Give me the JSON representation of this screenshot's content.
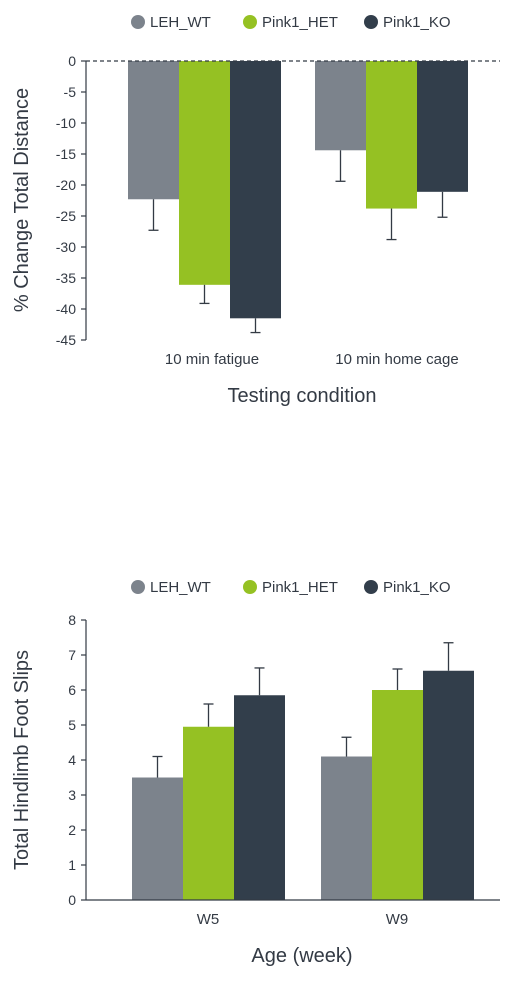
{
  "colors": {
    "LEH_WT": "#7c838c",
    "Pink1_HET": "#95c123",
    "Pink1_KO": "#323e4b",
    "axis": "#333a44"
  },
  "chart_data": [
    {
      "type": "bar",
      "legend": [
        "LEH_WT",
        "Pink1_HET",
        "Pink1_KO"
      ],
      "legend_position": "top",
      "categories": [
        "10 min fatigue",
        "10 min home cage"
      ],
      "series": [
        {
          "name": "LEH_WT",
          "values": [
            -22.3,
            -14.4
          ],
          "errors": [
            5.0,
            5.0
          ]
        },
        {
          "name": "Pink1_HET",
          "values": [
            -36.1,
            -23.8
          ],
          "errors": [
            3.0,
            5.0
          ]
        },
        {
          "name": "Pink1_KO",
          "values": [
            -41.5,
            -21.1
          ],
          "errors": [
            2.3,
            4.1
          ]
        }
      ],
      "xlabel": "Testing condition",
      "ylabel": "% Change Total Distance",
      "ylim": [
        -45,
        0
      ],
      "yticks": [
        0,
        -5,
        -10,
        -15,
        -20,
        -25,
        -30,
        -35,
        -40,
        -45
      ],
      "grid": false,
      "zero_line": "dashed"
    },
    {
      "type": "bar",
      "legend": [
        "LEH_WT",
        "Pink1_HET",
        "Pink1_KO"
      ],
      "legend_position": "top",
      "categories": [
        "W5",
        "W9"
      ],
      "series": [
        {
          "name": "LEH_WT",
          "values": [
            3.5,
            4.1
          ],
          "errors": [
            0.6,
            0.55
          ]
        },
        {
          "name": "Pink1_HET",
          "values": [
            4.95,
            6.0
          ],
          "errors": [
            0.65,
            0.6
          ]
        },
        {
          "name": "Pink1_KO",
          "values": [
            5.85,
            6.55
          ],
          "errors": [
            0.78,
            0.8
          ]
        }
      ],
      "xlabel": "Age (week)",
      "ylabel": "Total Hindlimb Foot Slips",
      "ylim": [
        0,
        8
      ],
      "yticks": [
        0,
        1,
        2,
        3,
        4,
        5,
        6,
        7,
        8
      ],
      "grid": false
    }
  ]
}
